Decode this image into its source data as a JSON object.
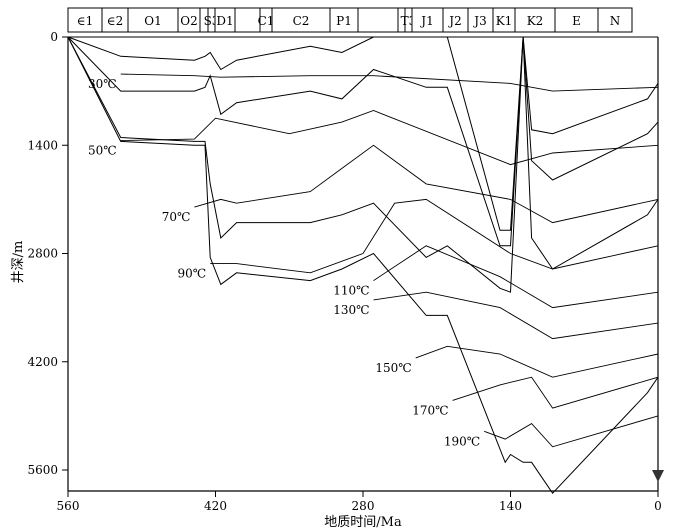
{
  "chart_data": {
    "type": "line",
    "xlabel": "地质时间/Ma",
    "ylabel": "井深/m",
    "xlim": [
      560,
      0
    ],
    "ylim": [
      0,
      5600
    ],
    "x_ticks": [
      "560",
      "420",
      "280",
      "140",
      "0"
    ],
    "y_ticks": [
      "0",
      "1400",
      "2800",
      "4200",
      "5600"
    ],
    "strata": [
      "∈1",
      "∈2",
      "O1",
      "O2",
      "",
      "S3",
      "D1",
      "",
      "C1",
      "C2",
      "P1",
      "",
      "",
      "T3",
      "J1",
      "J2",
      "J3",
      "K1",
      "K2",
      "E",
      "N"
    ],
    "burial_lines": [
      {
        "x": [
          560,
          510,
          440,
          430,
          425,
          415,
          400,
          330,
          300,
          270,
          220,
          200,
          145,
          140,
          130,
          120,
          100,
          10,
          0
        ],
        "y": [
          0,
          0,
          0,
          0,
          0,
          0,
          0,
          0,
          0,
          0,
          0,
          0,
          0,
          0,
          0,
          0,
          0,
          0,
          0
        ]
      },
      {
        "x": [
          560,
          510,
          440,
          430,
          425,
          415,
          400,
          330,
          300,
          270,
          220,
          200,
          150,
          140,
          128,
          120,
          100,
          10,
          0
        ],
        "y": [
          0,
          250,
          300,
          250,
          200,
          420,
          300,
          120,
          200,
          0,
          0,
          0,
          2500,
          2500,
          0,
          1200,
          1250,
          800,
          600
        ]
      },
      {
        "x": [
          560,
          510,
          440,
          430,
          425,
          415,
          400,
          330,
          300,
          270,
          220,
          200,
          150,
          140,
          128,
          120,
          100,
          10,
          0
        ],
        "y": [
          0,
          700,
          700,
          650,
          500,
          1000,
          850,
          700,
          800,
          420,
          650,
          650,
          2700,
          2700,
          0,
          1600,
          1850,
          1250,
          1100
        ]
      },
      {
        "x": [
          560,
          510,
          440,
          430,
          425,
          415,
          400,
          330,
          300,
          270,
          220,
          200,
          150,
          140,
          128,
          120,
          100,
          10,
          0
        ],
        "y": [
          0,
          1300,
          1350,
          1350,
          1900,
          2600,
          2400,
          2400,
          2300,
          2150,
          2850,
          2700,
          3250,
          3300,
          0,
          2600,
          3000,
          2300,
          2100
        ]
      },
      {
        "x": [
          560,
          510,
          440,
          430,
          425,
          415,
          400,
          330,
          300,
          270,
          220,
          200,
          145,
          140,
          128,
          120,
          100,
          10,
          0
        ],
        "y": [
          0,
          1350,
          1400,
          1400,
          2850,
          3200,
          3050,
          3150,
          3000,
          2800,
          3600,
          3600,
          5500,
          5400,
          5500,
          5500,
          5900,
          4600,
          4400
        ]
      }
    ],
    "isotherms": [
      {
        "name": "30℃",
        "x": [
          510,
          440,
          415,
          330,
          270,
          140,
          100,
          0
        ],
        "y": [
          480,
          500,
          520,
          500,
          500,
          600,
          700,
          650
        ]
      },
      {
        "name": "50℃",
        "x": [
          510,
          440,
          420,
          350,
          300,
          270,
          140,
          100,
          0
        ],
        "y": [
          1340,
          1320,
          1050,
          1250,
          1100,
          950,
          1650,
          1500,
          1400
        ]
      },
      {
        "name": "70℃",
        "x": [
          440,
          415,
          400,
          330,
          300,
          270,
          220,
          140,
          100,
          0
        ],
        "y": [
          2200,
          2100,
          2150,
          2000,
          1700,
          1400,
          1900,
          2100,
          2400,
          2100
        ]
      },
      {
        "name": "90℃",
        "x": [
          425,
          400,
          330,
          280,
          250,
          220,
          140,
          100,
          0
        ],
        "y": [
          2930,
          2930,
          3050,
          2800,
          2150,
          2100,
          2800,
          3000,
          2700
        ]
      },
      {
        "name": "110℃",
        "x": [
          270,
          220,
          150,
          100,
          0
        ],
        "y": [
          3150,
          2700,
          3100,
          3500,
          3300
        ]
      },
      {
        "name": "130℃",
        "x": [
          270,
          220,
          150,
          100,
          0
        ],
        "y": [
          3400,
          3300,
          3500,
          3900,
          3700
        ]
      },
      {
        "name": "150℃",
        "x": [
          230,
          200,
          150,
          100,
          0
        ],
        "y": [
          4150,
          4000,
          4100,
          4400,
          4100
        ]
      },
      {
        "name": "170℃",
        "x": [
          195,
          150,
          120,
          100,
          0
        ],
        "y": [
          4700,
          4500,
          4400,
          4800,
          4400
        ]
      },
      {
        "name": "190℃",
        "x": [
          165,
          145,
          120,
          100,
          0
        ],
        "y": [
          5100,
          5200,
          5000,
          5300,
          4900
        ]
      }
    ],
    "grid": false,
    "legend": "none"
  }
}
